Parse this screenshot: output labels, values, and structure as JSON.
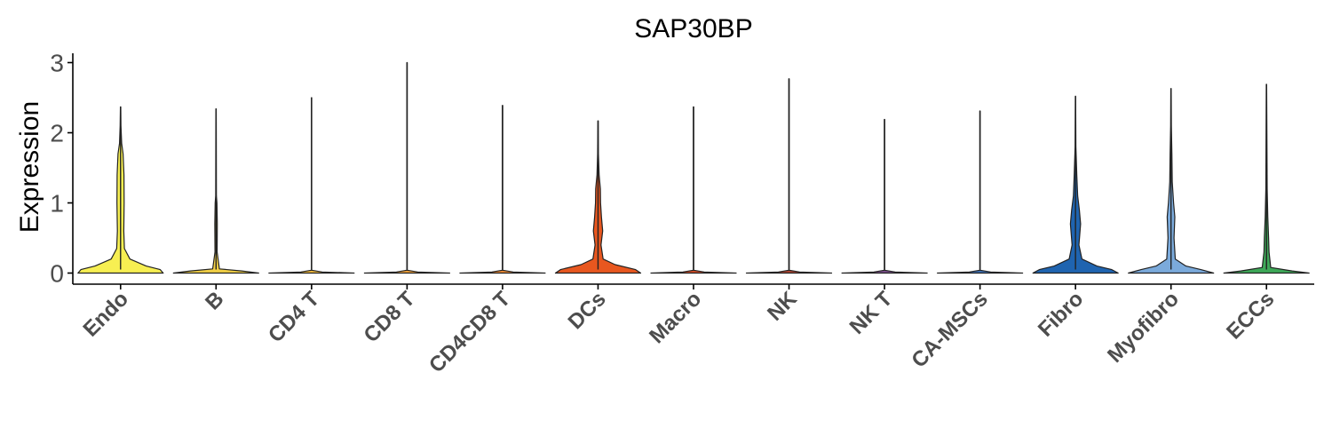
{
  "chart_data": {
    "type": "violin",
    "title": "SAP30BP",
    "xlabel": "",
    "ylabel": "Expression",
    "ylim": [
      -0.15,
      3.15
    ],
    "yticks": [
      "0",
      "1",
      "2",
      "3"
    ],
    "legend": "none",
    "grid": false,
    "categories": [
      {
        "name": "Endo",
        "max": 2.37,
        "color": "#F7EF52",
        "profile": [
          [
            0,
            1
          ],
          [
            0.05,
            0.93
          ],
          [
            0.1,
            0.6
          ],
          [
            0.2,
            0.22
          ],
          [
            0.35,
            0.09
          ],
          [
            0.6,
            0.075
          ],
          [
            1.0,
            0.085
          ],
          [
            1.4,
            0.08
          ],
          [
            1.7,
            0.06
          ],
          [
            1.85,
            0.025
          ],
          [
            2.1,
            0.01
          ],
          [
            2.37,
            0.004
          ]
        ]
      },
      {
        "name": "B",
        "max": 2.34,
        "color": "#F1CF45",
        "profile": [
          [
            0,
            1
          ],
          [
            0.03,
            0.6
          ],
          [
            0.06,
            0.08
          ],
          [
            0.3,
            0.025
          ],
          [
            0.7,
            0.03
          ],
          [
            1.0,
            0.02
          ],
          [
            1.1,
            0.008
          ],
          [
            2.34,
            0.004
          ]
        ]
      },
      {
        "name": "CD4 T",
        "max": 2.5,
        "color": "#F4BB3C",
        "profile": [
          [
            0,
            1
          ],
          [
            0.015,
            0.25
          ],
          [
            0.04,
            0.004
          ],
          [
            2.5,
            0.004
          ]
        ]
      },
      {
        "name": "CD8 T",
        "max": 3.0,
        "color": "#F2A239",
        "profile": [
          [
            0,
            1
          ],
          [
            0.015,
            0.25
          ],
          [
            0.04,
            0.004
          ],
          [
            3.0,
            0.004
          ]
        ]
      },
      {
        "name": "CD4CD8 T",
        "max": 2.39,
        "color": "#EF8A33",
        "profile": [
          [
            0,
            1
          ],
          [
            0.015,
            0.25
          ],
          [
            0.04,
            0.004
          ],
          [
            2.39,
            0.004
          ]
        ]
      },
      {
        "name": "DCs",
        "max": 2.17,
        "color": "#E8571F",
        "profile": [
          [
            0,
            1
          ],
          [
            0.05,
            0.88
          ],
          [
            0.12,
            0.4
          ],
          [
            0.2,
            0.12
          ],
          [
            0.4,
            0.07
          ],
          [
            0.6,
            0.11
          ],
          [
            0.8,
            0.08
          ],
          [
            1.0,
            0.06
          ],
          [
            1.2,
            0.055
          ],
          [
            1.4,
            0.025
          ],
          [
            1.7,
            0.01
          ],
          [
            2.17,
            0.004
          ]
        ]
      },
      {
        "name": "Macro",
        "max": 2.37,
        "color": "#D44C25",
        "profile": [
          [
            0,
            1
          ],
          [
            0.015,
            0.25
          ],
          [
            0.04,
            0.004
          ],
          [
            2.37,
            0.004
          ]
        ]
      },
      {
        "name": "NK",
        "max": 2.77,
        "color": "#B24430",
        "profile": [
          [
            0,
            1
          ],
          [
            0.015,
            0.25
          ],
          [
            0.04,
            0.004
          ],
          [
            2.77,
            0.004
          ]
        ]
      },
      {
        "name": "NK T",
        "max": 2.19,
        "color": "#7A4D8A",
        "profile": [
          [
            0,
            1
          ],
          [
            0.015,
            0.25
          ],
          [
            0.04,
            0.004
          ],
          [
            2.19,
            0.004
          ]
        ]
      },
      {
        "name": "CA-MSCs",
        "max": 2.31,
        "color": "#3D6FB4",
        "profile": [
          [
            0,
            1
          ],
          [
            0.015,
            0.25
          ],
          [
            0.04,
            0.004
          ],
          [
            2.31,
            0.004
          ]
        ]
      },
      {
        "name": "Fibro",
        "max": 2.52,
        "color": "#1F64B0",
        "profile": [
          [
            0,
            1
          ],
          [
            0.05,
            0.85
          ],
          [
            0.1,
            0.5
          ],
          [
            0.2,
            0.15
          ],
          [
            0.4,
            0.08
          ],
          [
            0.7,
            0.12
          ],
          [
            0.9,
            0.09
          ],
          [
            1.1,
            0.05
          ],
          [
            1.4,
            0.03
          ],
          [
            1.8,
            0.01
          ],
          [
            2.52,
            0.004
          ]
        ]
      },
      {
        "name": "Myofibro",
        "max": 2.63,
        "color": "#7BAADB",
        "profile": [
          [
            0,
            1
          ],
          [
            0.05,
            0.7
          ],
          [
            0.1,
            0.35
          ],
          [
            0.2,
            0.1
          ],
          [
            0.5,
            0.07
          ],
          [
            0.8,
            0.09
          ],
          [
            1.0,
            0.06
          ],
          [
            1.3,
            0.03
          ],
          [
            1.7,
            0.02
          ],
          [
            2.1,
            0.008
          ],
          [
            2.63,
            0.004
          ]
        ]
      },
      {
        "name": "ECCs",
        "max": 2.69,
        "color": "#3EA858",
        "profile": [
          [
            0,
            1
          ],
          [
            0.03,
            0.6
          ],
          [
            0.08,
            0.1
          ],
          [
            0.3,
            0.06
          ],
          [
            0.5,
            0.05
          ],
          [
            0.8,
            0.03
          ],
          [
            1.2,
            0.015
          ],
          [
            2.69,
            0.004
          ]
        ]
      }
    ]
  }
}
